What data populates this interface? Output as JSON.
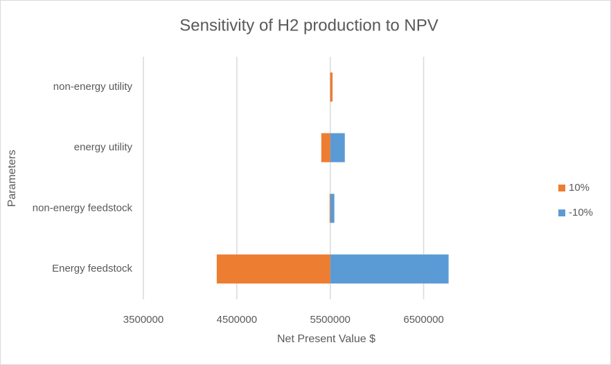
{
  "chart_data": {
    "type": "tornado",
    "title": "Sensitivity of H2 production to NPV",
    "x_label": "Net Present Value $",
    "y_label": "Parameters",
    "categories": [
      "Energy feedstock",
      "non-energy feedstock",
      "energy utility",
      "non-energy utility"
    ],
    "base": 5500000,
    "series": [
      {
        "name": "10%",
        "color": "#ed7d31",
        "values": [
          4285000,
          5493000,
          5404000,
          5525000
        ]
      },
      {
        "name": "-10%",
        "color": "#5b9bd5",
        "values": [
          6767000,
          5544000,
          5656000,
          5510000
        ]
      }
    ],
    "xlim": [
      3500000,
      7000000
    ],
    "xticks": [
      3500000,
      4500000,
      5500000,
      6500000
    ],
    "grid": true,
    "legend": "right"
  }
}
